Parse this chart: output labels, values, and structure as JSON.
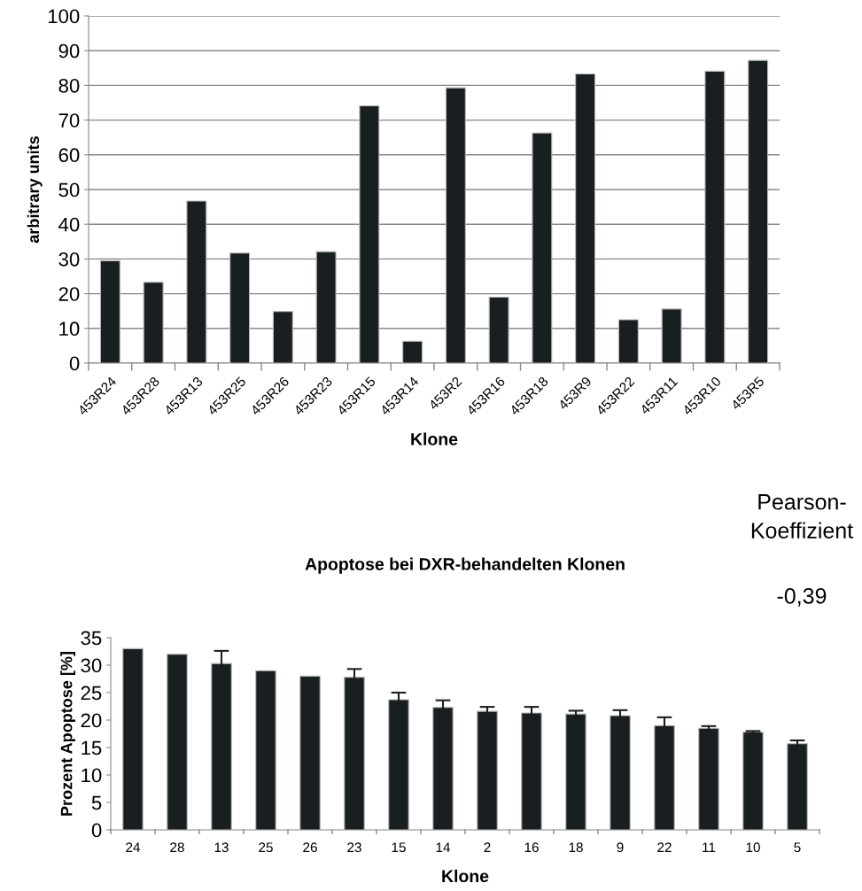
{
  "chart_data": [
    {
      "type": "bar",
      "xlabel": "Klone",
      "ylabel": "arbitrary units",
      "categories": [
        "453R24",
        "453R28",
        "453R13",
        "453R25",
        "453R26",
        "453R23",
        "453R15",
        "453R14",
        "453R2",
        "453R16",
        "453R18",
        "453R9",
        "453R22",
        "453R11",
        "453R10",
        "453R5"
      ],
      "values": [
        29.5,
        23.3,
        46.7,
        31.7,
        14.9,
        32.1,
        74.1,
        6.3,
        79.3,
        19.0,
        66.3,
        83.3,
        12.5,
        15.6,
        84.1,
        87.2
      ],
      "color": "#191e20",
      "ylim": [
        0,
        100
      ],
      "yticks": [
        0,
        10,
        20,
        30,
        40,
        50,
        60,
        70,
        80,
        90,
        100
      ],
      "grid": "y"
    },
    {
      "type": "bar",
      "title": "Apoptose bei DXR-behandelten Klonen",
      "xlabel": "Klone",
      "ylabel": "Prozent Apoptose [%]",
      "categories": [
        "24",
        "28",
        "13",
        "25",
        "26",
        "23",
        "15",
        "14",
        "2",
        "16",
        "18",
        "9",
        "22",
        "11",
        "10",
        "5"
      ],
      "values": [
        33.0,
        32.0,
        30.3,
        29.0,
        28.0,
        27.8,
        23.7,
        22.3,
        21.6,
        21.3,
        21.1,
        20.8,
        19.0,
        18.5,
        17.8,
        15.7
      ],
      "errors": [
        null,
        null,
        2.3,
        null,
        null,
        1.5,
        1.3,
        1.3,
        0.8,
        1.1,
        0.6,
        1.0,
        1.5,
        0.4,
        0.2,
        0.6
      ],
      "color": "#191e20",
      "ylim": [
        0,
        35
      ],
      "yticks": [
        0,
        5,
        10,
        15,
        20,
        25,
        30,
        35
      ],
      "grid": false,
      "annotations": [
        "Pearson-\nKoeffizient",
        "-0,39"
      ]
    }
  ]
}
